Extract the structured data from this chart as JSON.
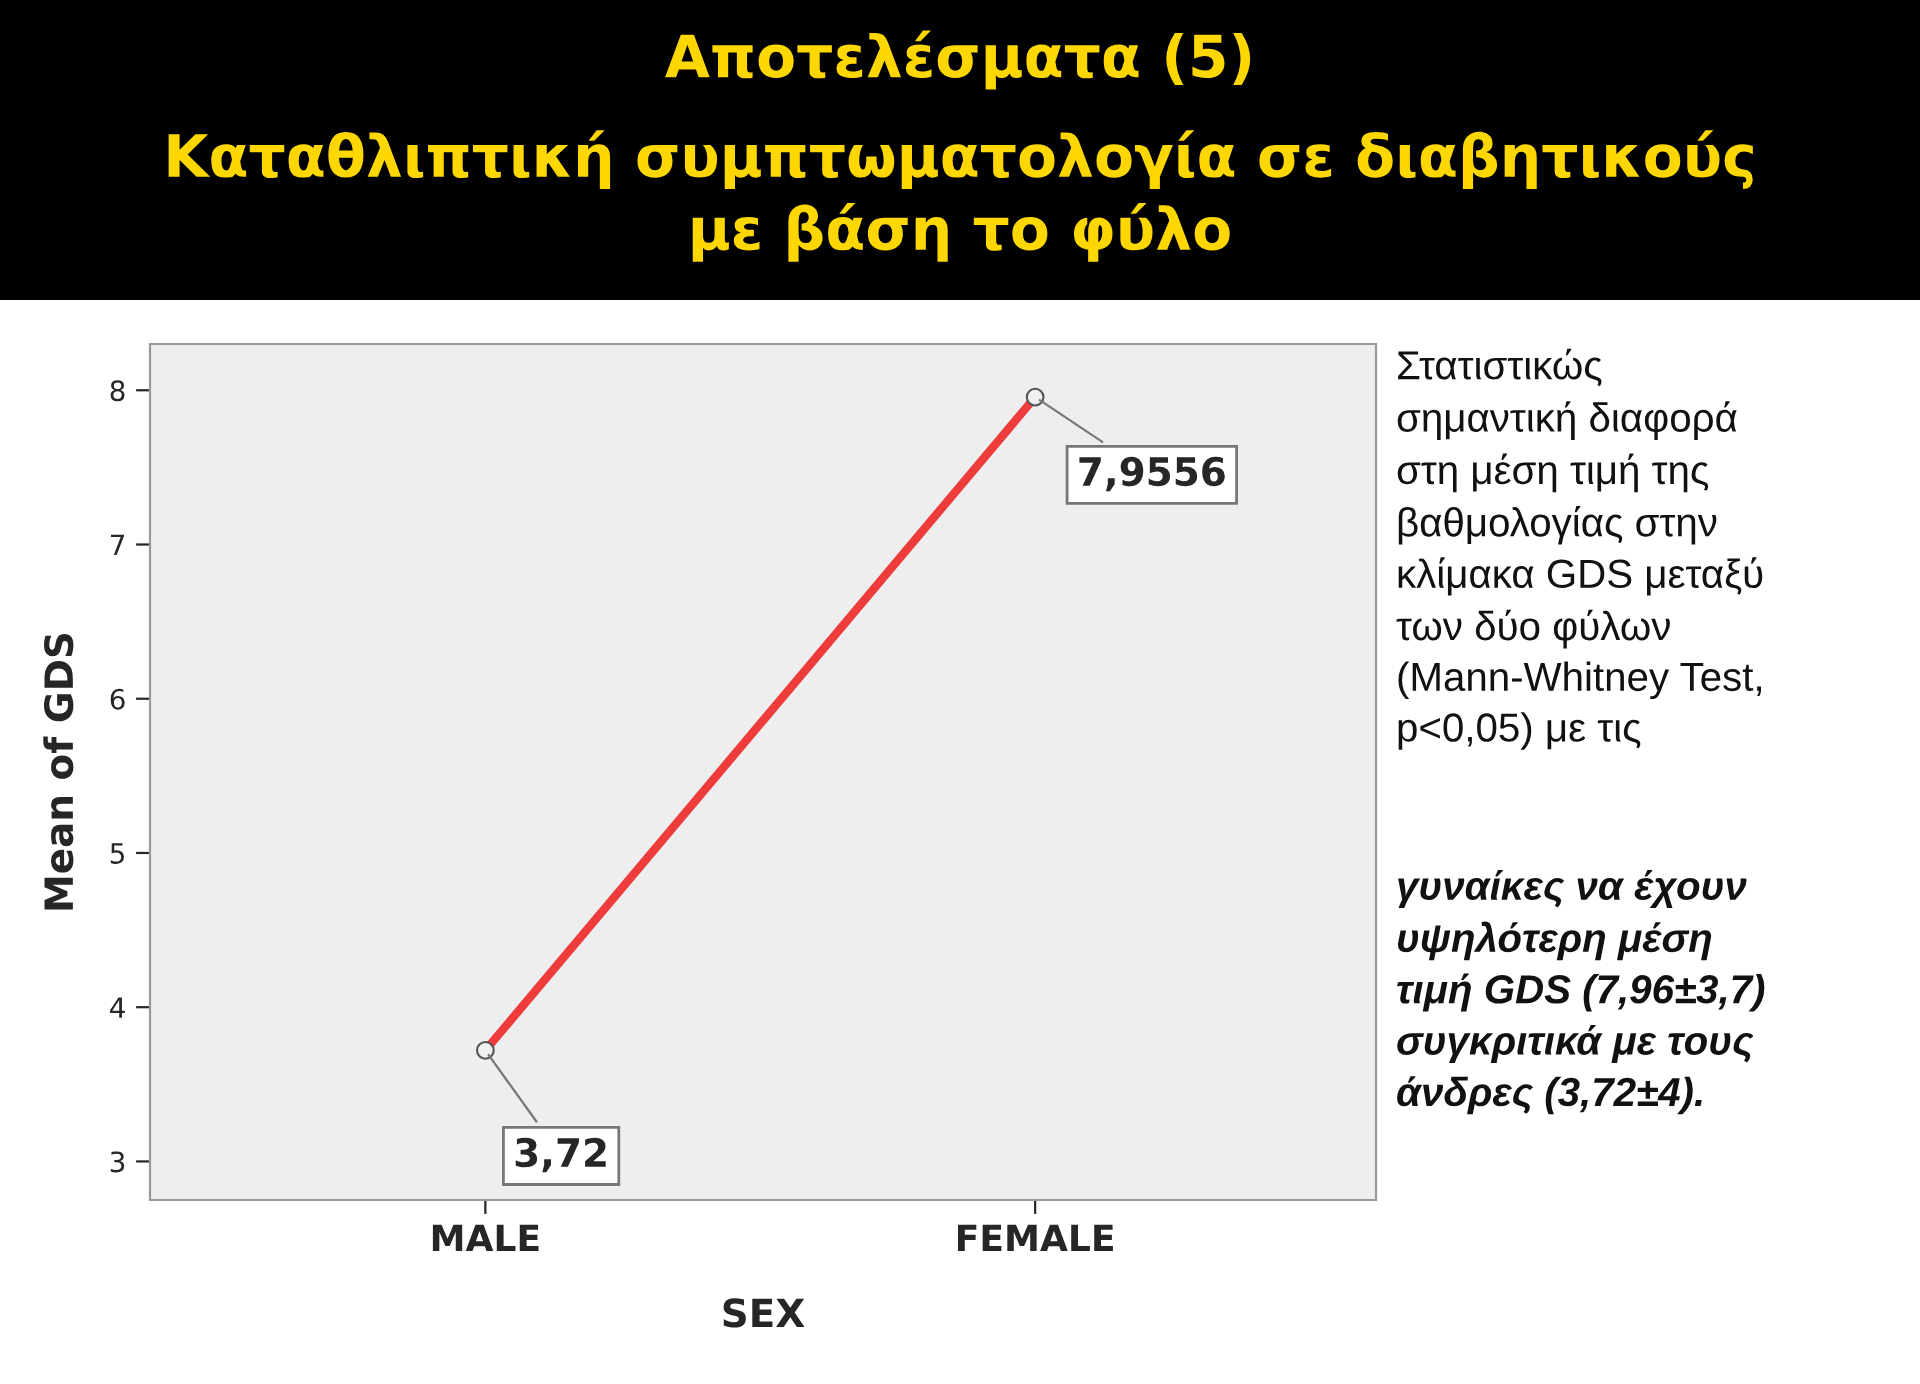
{
  "chart_data": {
    "type": "line",
    "title": "Αποτελέσματα (5)",
    "subtitle": "Καταθλιπτική συμπτωματολογία σε διαβητικούς\nμε βάση το φύλο",
    "xlabel": "SEX",
    "ylabel": "Mean of GDS",
    "categories": [
      "MALE",
      "FEMALE"
    ],
    "series": [
      {
        "color": "#ee3b3b",
        "values": [
          3.72,
          7.9556
        ],
        "value_labels": [
          "3,72",
          "7,9556"
        ]
      }
    ],
    "ylim": [
      2.75,
      8.3
    ],
    "yticks": [
      3,
      4,
      5,
      6,
      7,
      8
    ],
    "grid": false,
    "legend": false,
    "marker": "circle",
    "line_style": "solid",
    "annotations": [
      "Στατιστικώς\nσημαντική διαφορά\nστη μέση τιμή της\nβαθμολογίας στην\nκλίμακα GDS μεταξύ\nτων δύο φύλων\n(Mann-Whitney Test,\np<0,05) με τις",
      "γυναίκες να έχουν\nυψηλότερη μέση\nτιμή GDS (7,96±3,7)\nσυγκριτικά με τους\nάνδρες (3,72±4)."
    ]
  }
}
